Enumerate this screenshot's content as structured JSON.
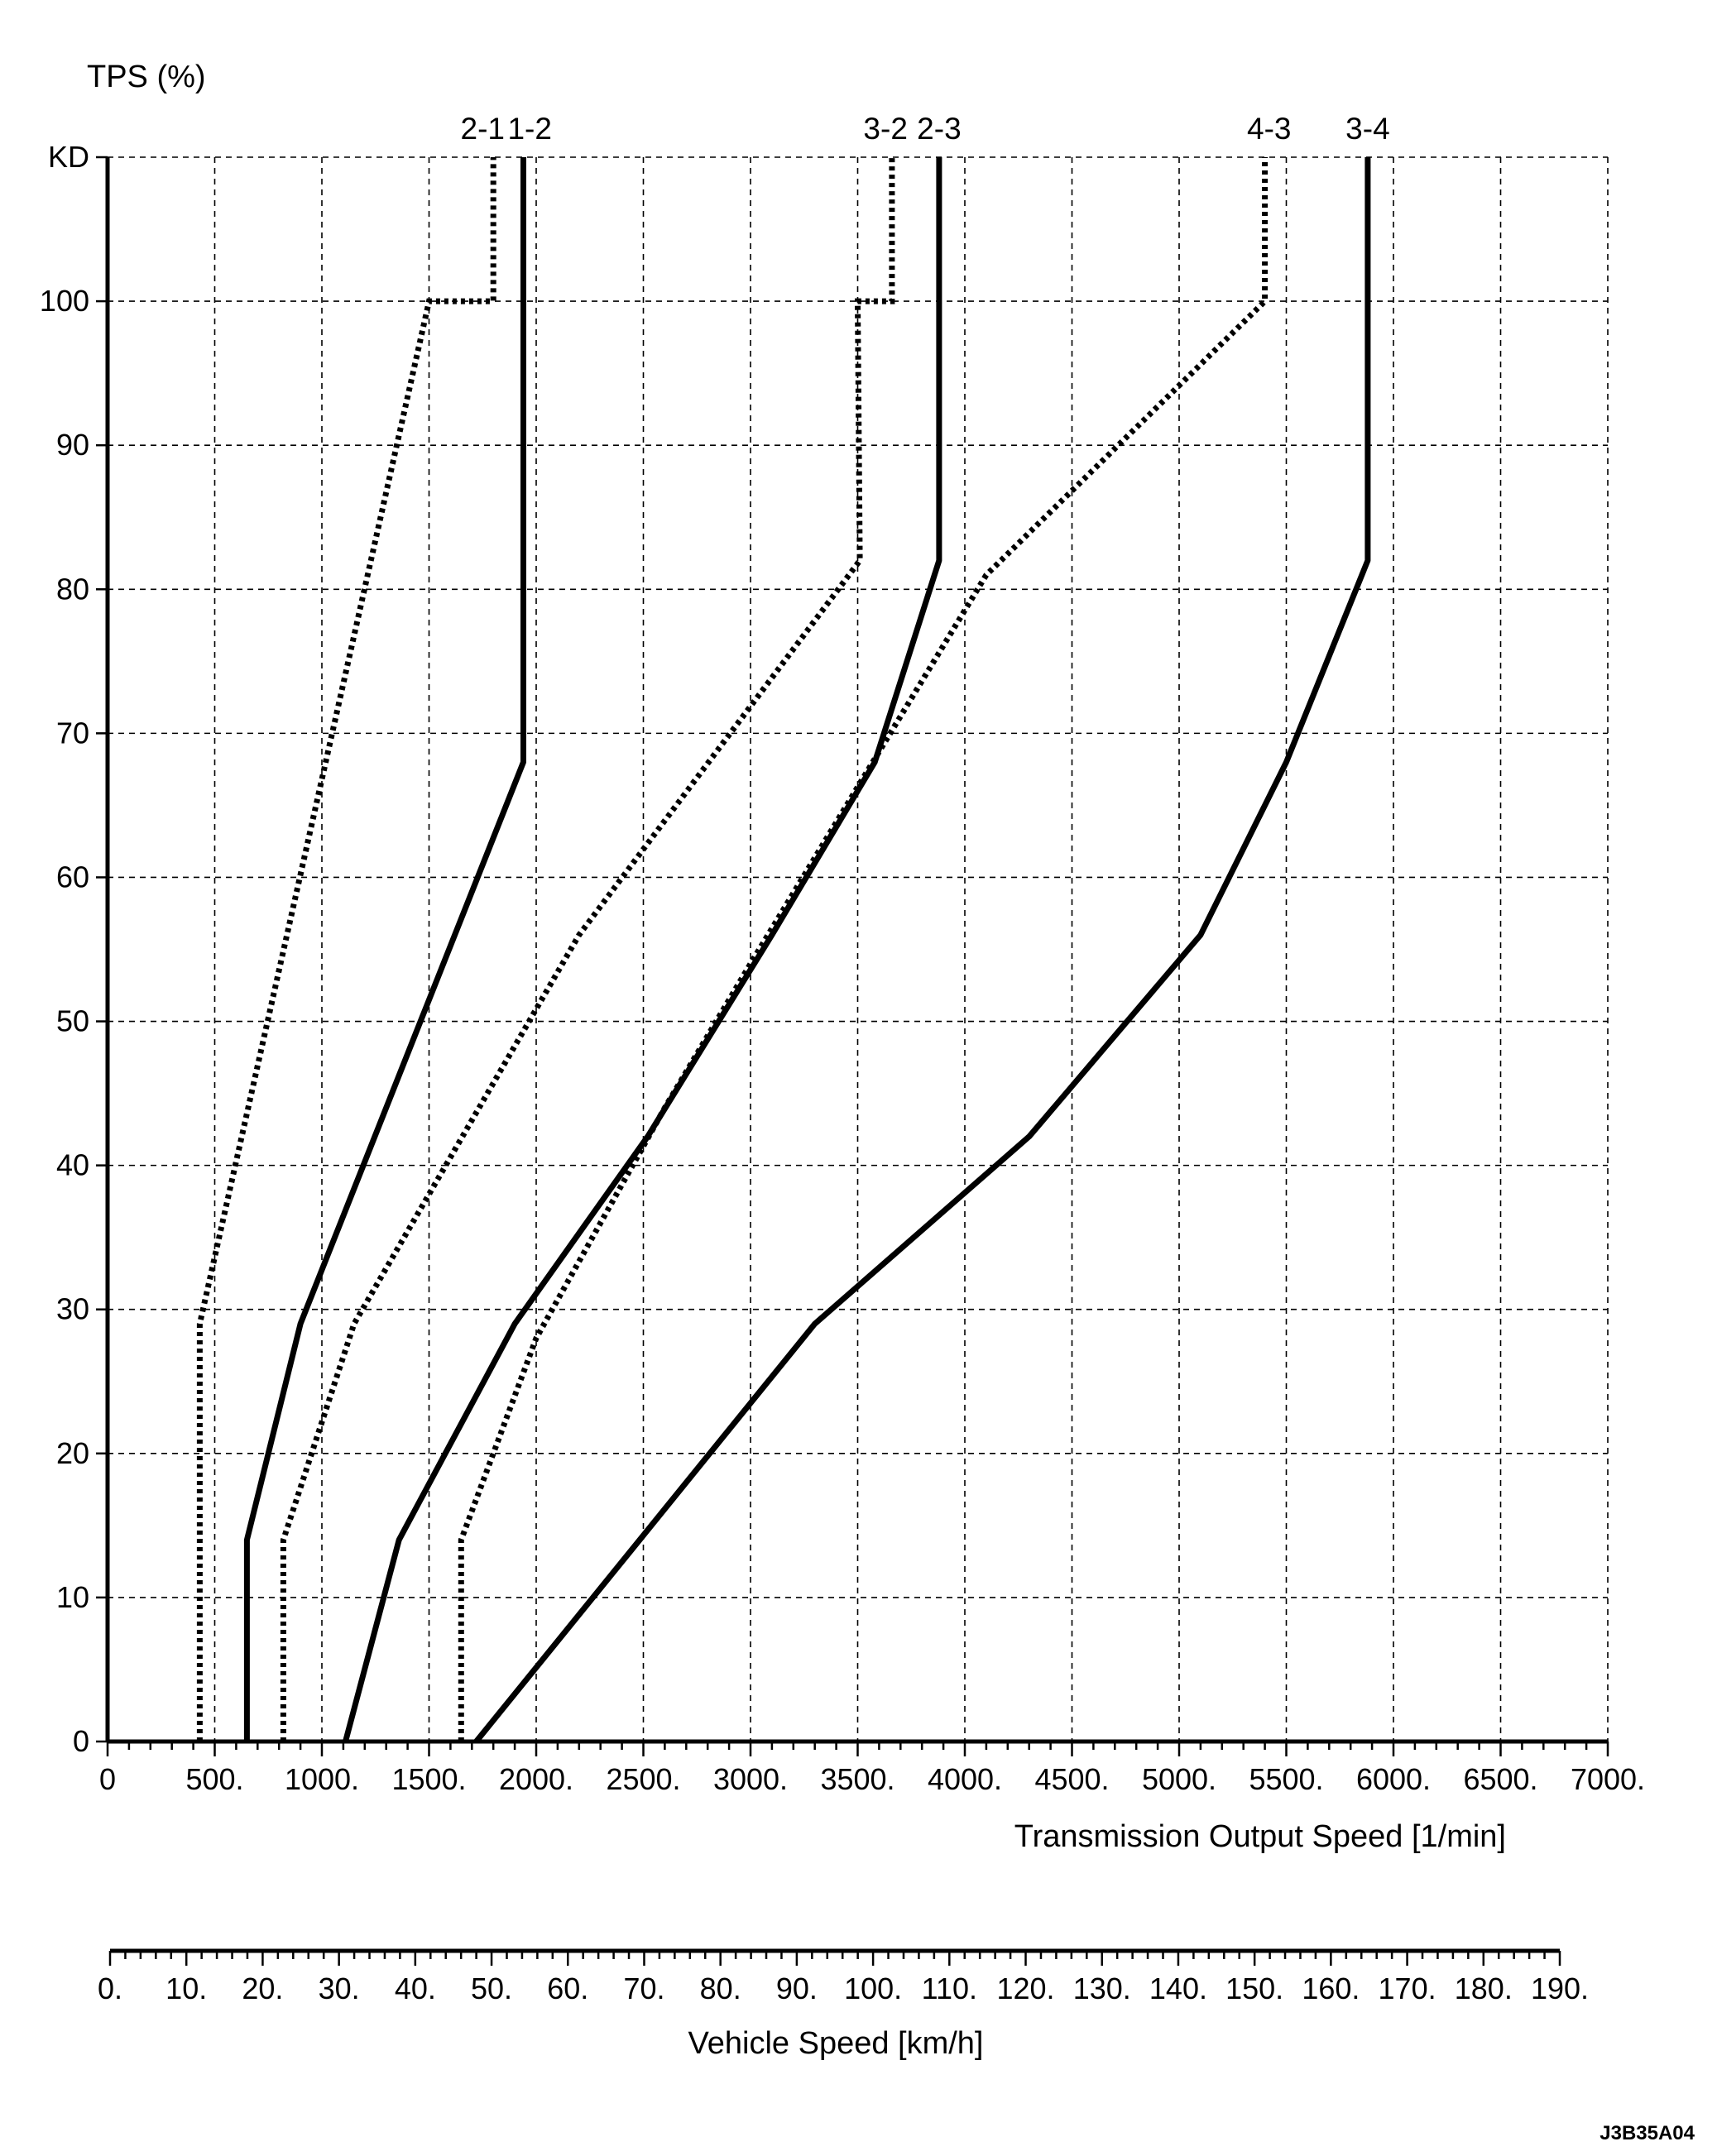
{
  "chart_data": {
    "type": "line",
    "y_axis": {
      "title": "TPS (%)",
      "ticks": [
        {
          "value": 0,
          "label": "0"
        },
        {
          "value": 10,
          "label": "10"
        },
        {
          "value": 20,
          "label": "20"
        },
        {
          "value": 30,
          "label": "30"
        },
        {
          "value": 40,
          "label": "40"
        },
        {
          "value": 50,
          "label": "50"
        },
        {
          "value": 60,
          "label": "60"
        },
        {
          "value": 70,
          "label": "70"
        },
        {
          "value": 80,
          "label": "80"
        },
        {
          "value": 90,
          "label": "90"
        },
        {
          "value": 100,
          "label": "100"
        },
        {
          "value": 110,
          "label": "KD"
        }
      ],
      "ylim": [
        0,
        110
      ]
    },
    "x_axis": {
      "title": "Transmission Output Speed [1/min]",
      "ticks": [
        {
          "value": 0,
          "label": "0"
        },
        {
          "value": 500,
          "label": "500."
        },
        {
          "value": 1000,
          "label": "1000."
        },
        {
          "value": 1500,
          "label": "1500."
        },
        {
          "value": 2000,
          "label": "2000."
        },
        {
          "value": 2500,
          "label": "2500."
        },
        {
          "value": 3000,
          "label": "3000."
        },
        {
          "value": 3500,
          "label": "3500."
        },
        {
          "value": 4000,
          "label": "4000."
        },
        {
          "value": 4500,
          "label": "4500."
        },
        {
          "value": 5000,
          "label": "5000."
        },
        {
          "value": 5500,
          "label": "5500."
        },
        {
          "value": 6000,
          "label": "6000."
        },
        {
          "value": 6500,
          "label": "6500."
        },
        {
          "value": 7000,
          "label": "7000."
        }
      ],
      "xlim": [
        0,
        7000
      ]
    },
    "secondary_x_axis": {
      "title": "Vehicle Speed [km/h]",
      "ticks": [
        {
          "value": 0,
          "label": "0."
        },
        {
          "value": 10,
          "label": "10."
        },
        {
          "value": 20,
          "label": "20."
        },
        {
          "value": 30,
          "label": "30."
        },
        {
          "value": 40,
          "label": "40."
        },
        {
          "value": 50,
          "label": "50."
        },
        {
          "value": 60,
          "label": "60."
        },
        {
          "value": 70,
          "label": "70."
        },
        {
          "value": 80,
          "label": "80."
        },
        {
          "value": 90,
          "label": "90."
        },
        {
          "value": 100,
          "label": "100."
        },
        {
          "value": 110,
          "label": "110."
        },
        {
          "value": 120,
          "label": "120."
        },
        {
          "value": 130,
          "label": "130."
        },
        {
          "value": 140,
          "label": "140."
        },
        {
          "value": 150,
          "label": "150."
        },
        {
          "value": 160,
          "label": "160."
        },
        {
          "value": 170,
          "label": "170."
        },
        {
          "value": 180,
          "label": "180."
        },
        {
          "value": 190,
          "label": "190."
        }
      ],
      "xlim": [
        0,
        190
      ]
    },
    "grid": true,
    "series": [
      {
        "name": "2-1",
        "style": "dotted",
        "label_x": 1750,
        "points": [
          [
            430,
            0
          ],
          [
            430,
            29
          ],
          [
            1500,
            100
          ],
          [
            1800,
            100
          ],
          [
            1800,
            110
          ]
        ]
      },
      {
        "name": "1-2",
        "style": "solid",
        "label_x": 1970,
        "points": [
          [
            650,
            0
          ],
          [
            650,
            14
          ],
          [
            900,
            29
          ],
          [
            1940,
            68
          ],
          [
            1940,
            110
          ]
        ]
      },
      {
        "name": "3-2",
        "style": "dotted",
        "label_x": 3630,
        "points": [
          [
            820,
            0
          ],
          [
            820,
            14
          ],
          [
            1150,
            29
          ],
          [
            2200,
            56
          ],
          [
            3510,
            82
          ],
          [
            3500,
            100
          ],
          [
            3660,
            100
          ],
          [
            3660,
            110
          ]
        ]
      },
      {
        "name": "2-3",
        "style": "solid",
        "label_x": 3880,
        "points": [
          [
            1110,
            0
          ],
          [
            1360,
            14
          ],
          [
            1900,
            29
          ],
          [
            2520,
            42
          ],
          [
            3100,
            56
          ],
          [
            3580,
            68
          ],
          [
            3880,
            82
          ],
          [
            3880,
            110
          ]
        ]
      },
      {
        "name": "4-3",
        "style": "dotted",
        "label_x": 5420,
        "points": [
          [
            1650,
            0
          ],
          [
            1650,
            14
          ],
          [
            2000,
            28
          ],
          [
            2600,
            44
          ],
          [
            3000,
            54
          ],
          [
            4100,
            81
          ],
          [
            5400,
            100
          ],
          [
            5400,
            110
          ]
        ]
      },
      {
        "name": "3-4",
        "style": "solid",
        "label_x": 5880,
        "points": [
          [
            1720,
            0
          ],
          [
            3300,
            29
          ],
          [
            4300,
            42
          ],
          [
            5100,
            56
          ],
          [
            5500,
            68
          ],
          [
            5880,
            82
          ],
          [
            5880,
            110
          ]
        ]
      }
    ]
  },
  "reference_code": "J3B35A04"
}
